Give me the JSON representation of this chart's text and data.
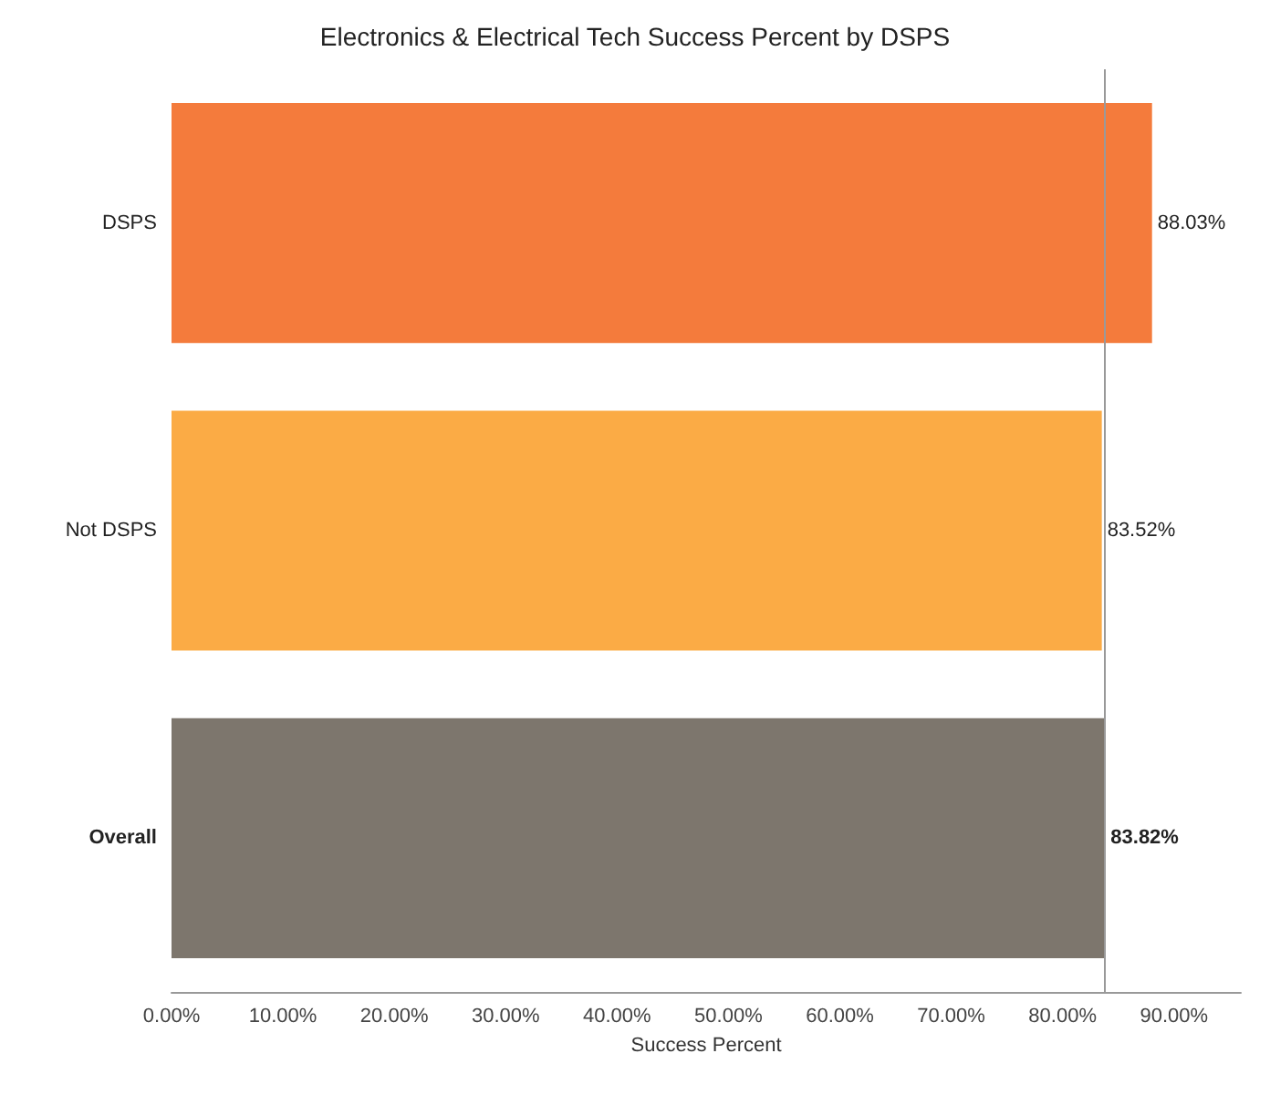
{
  "chart_data": {
    "type": "bar",
    "orientation": "horizontal",
    "title": "Electronics & Electrical Tech Success Percent by DSPS",
    "xlabel": "Success Percent",
    "categories": [
      "DSPS",
      "Not DSPS",
      "Overall"
    ],
    "values": [
      88.03,
      83.52,
      83.82
    ],
    "colors": [
      "#f47b3c",
      "#fbab45",
      "#7d766d"
    ],
    "value_labels": [
      "88.03%",
      "83.52%",
      "83.82%"
    ],
    "xlim": [
      0,
      96
    ],
    "xticks": [
      {
        "value": 0,
        "label": "0.00%"
      },
      {
        "value": 10,
        "label": "10.00%"
      },
      {
        "value": 20,
        "label": "20.00%"
      },
      {
        "value": 30,
        "label": "30.00%"
      },
      {
        "value": 40,
        "label": "40.00%"
      },
      {
        "value": 50,
        "label": "50.00%"
      },
      {
        "value": 60,
        "label": "60.00%"
      },
      {
        "value": 70,
        "label": "70.00%"
      },
      {
        "value": 80,
        "label": "80.00%"
      },
      {
        "value": 90,
        "label": "90.00%"
      }
    ],
    "ref_lines": [
      {
        "axis": "x",
        "value": 83.82,
        "color": "#999999"
      }
    ],
    "grid": false
  }
}
